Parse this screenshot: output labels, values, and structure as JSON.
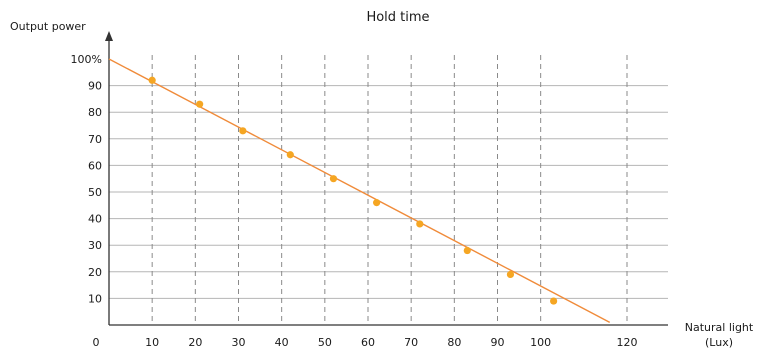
{
  "chart_data": {
    "type": "line",
    "title": "Hold time",
    "ylabel": "Output power",
    "xlabel": "Natural light",
    "xlabel_unit": "(Lux)",
    "xlim": [
      0,
      120
    ],
    "ylim": [
      0,
      100
    ],
    "x_ticks": [
      {
        "value": 0,
        "label": "0"
      },
      {
        "value": 10,
        "label": "10"
      },
      {
        "value": 20,
        "label": "20"
      },
      {
        "value": 30,
        "label": "30"
      },
      {
        "value": 40,
        "label": "40"
      },
      {
        "value": 50,
        "label": "50"
      },
      {
        "value": 60,
        "label": "60"
      },
      {
        "value": 70,
        "label": "70"
      },
      {
        "value": 80,
        "label": "80"
      },
      {
        "value": 90,
        "label": "90"
      },
      {
        "value": 100,
        "label": "100"
      },
      {
        "value": 120,
        "label": "120"
      }
    ],
    "y_ticks": [
      {
        "value": 10,
        "label": "10"
      },
      {
        "value": 20,
        "label": "20"
      },
      {
        "value": 30,
        "label": "30"
      },
      {
        "value": 40,
        "label": "40"
      },
      {
        "value": 50,
        "label": "50"
      },
      {
        "value": 60,
        "label": "60"
      },
      {
        "value": 70,
        "label": "70"
      },
      {
        "value": 80,
        "label": "80"
      },
      {
        "value": 90,
        "label": "90"
      },
      {
        "value": 100,
        "label": "100%"
      }
    ],
    "x_gridlines": [
      10,
      20,
      30,
      40,
      50,
      60,
      70,
      80,
      90,
      100,
      120
    ],
    "grid": true,
    "series": [
      {
        "color": "#f08b3a",
        "line": [
          [
            0,
            100
          ],
          [
            116,
            1
          ]
        ],
        "points": [
          {
            "x": 10,
            "y": 92
          },
          {
            "x": 21,
            "y": 83
          },
          {
            "x": 31,
            "y": 73
          },
          {
            "x": 42,
            "y": 64
          },
          {
            "x": 52,
            "y": 55
          },
          {
            "x": 62,
            "y": 46
          },
          {
            "x": 72,
            "y": 38
          },
          {
            "x": 83,
            "y": 28
          },
          {
            "x": 93,
            "y": 19
          },
          {
            "x": 103,
            "y": 9
          }
        ]
      }
    ],
    "colors": {
      "marker": "#f5a623",
      "gridline": "#b5b5b5",
      "axis": "#333333"
    }
  }
}
